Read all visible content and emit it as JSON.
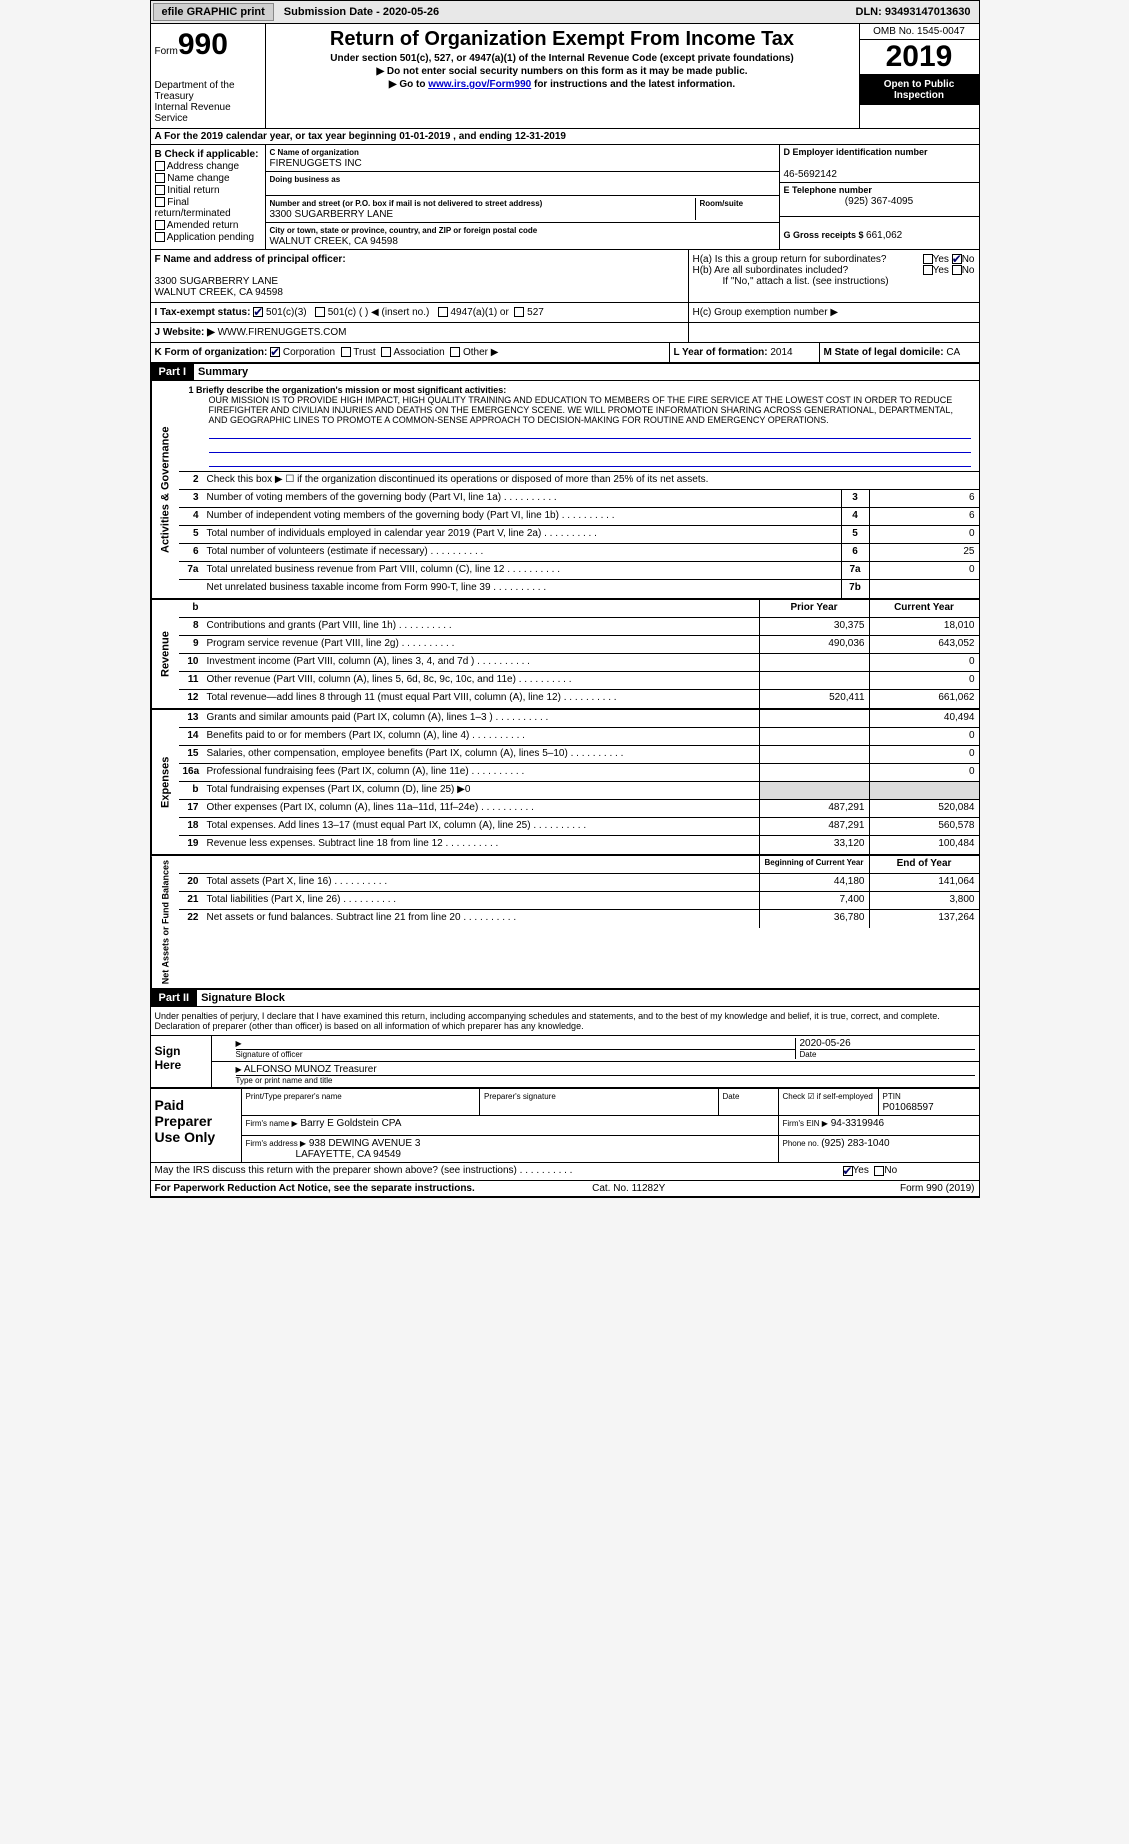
{
  "topbar": {
    "efile": "efile GRAPHIC print",
    "subdate_lbl": "Submission Date - ",
    "subdate": "2020-05-26",
    "dln_lbl": "DLN: ",
    "dln": "93493147013630"
  },
  "header": {
    "form": "Form",
    "formnum": "990",
    "dept": "Department of the Treasury\nInternal Revenue Service",
    "title": "Return of Organization Exempt From Income Tax",
    "sub1": "Under section 501(c), 527, or 4947(a)(1) of the Internal Revenue Code (except private foundations)",
    "sub2": "▶ Do not enter social security numbers on this form as it may be made public.",
    "sub3_pre": "▶ Go to ",
    "sub3_link": "www.irs.gov/Form990",
    "sub3_post": " for instructions and the latest information.",
    "omb": "OMB No. 1545-0047",
    "year": "2019",
    "open": "Open to Public Inspection"
  },
  "rowA": "A  For the 2019 calendar year, or tax year beginning 01-01-2019    , and ending 12-31-2019",
  "colB": {
    "hdr": "B Check if applicable:",
    "items": [
      "Address change",
      "Name change",
      "Initial return",
      "Final return/terminated",
      "Amended return",
      "Application pending"
    ]
  },
  "colC": {
    "name_lbl": "C Name of organization",
    "name": "FIRENUGGETS INC",
    "dba_lbl": "Doing business as",
    "dba": "",
    "addr_lbl": "Number and street (or P.O. box if mail is not delivered to street address)",
    "addr": "3300 SUGARBERRY LANE",
    "room_lbl": "Room/suite",
    "room": "",
    "city_lbl": "City or town, state or province, country, and ZIP or foreign postal code",
    "city": "WALNUT CREEK, CA  94598"
  },
  "colD": {
    "ein_lbl": "D Employer identification number",
    "ein": "46-5692142",
    "tel_lbl": "E Telephone number",
    "tel": "(925) 367-4095",
    "gross_lbl": "G Gross receipts $ ",
    "gross": "661,062"
  },
  "rowF": {
    "lbl": "F Name and address of principal officer:",
    "addr1": "3300 SUGARBERRY LANE",
    "addr2": "WALNUT CREEK, CA  94598"
  },
  "rowH": {
    "a": "H(a)  Is this a group return for subordinates?",
    "b": "H(b)  Are all subordinates included?",
    "note": "If \"No,\" attach a list. (see instructions)",
    "c": "H(c)  Group exemption number ▶",
    "yes": "Yes",
    "no": "No"
  },
  "rowI": {
    "lbl": "I  Tax-exempt status:",
    "o1": "501(c)(3)",
    "o2": "501(c) (  ) ◀ (insert no.)",
    "o3": "4947(a)(1) or",
    "o4": "527"
  },
  "rowJ": {
    "lbl": "J  Website: ▶",
    "val": "WWW.FIRENUGGETS.COM"
  },
  "rowK": {
    "lbl": "K Form of organization:",
    "o1": "Corporation",
    "o2": "Trust",
    "o3": "Association",
    "o4": "Other ▶"
  },
  "rowL": {
    "lbl": "L Year of formation: ",
    "val": "2014"
  },
  "rowM": {
    "lbl": "M State of legal domicile: ",
    "val": "CA"
  },
  "part1": {
    "hdr": "Part I",
    "title": "Summary"
  },
  "tabs": {
    "t1": "Activities & Governance",
    "t2": "Revenue",
    "t3": "Expenses",
    "t4": "Net Assets or Fund Balances"
  },
  "line1": {
    "lbl": "1  Briefly describe the organization's mission or most significant activities:",
    "txt": "OUR MISSION IS TO PROVIDE HIGH IMPACT, HIGH QUALITY TRAINING AND EDUCATION TO MEMBERS OF THE FIRE SERVICE AT THE LOWEST COST IN ORDER TO REDUCE FIREFIGHTER AND CIVILIAN INJURIES AND DEATHS ON THE EMERGENCY SCENE. WE WILL PROMOTE INFORMATION SHARING ACROSS GENERATIONAL, DEPARTMENTAL, AND GEOGRAPHIC LINES TO PROMOTE A COMMON-SENSE APPROACH TO DECISION-MAKING FOR ROUTINE AND EMERGENCY OPERATIONS."
  },
  "line2": "Check this box ▶ ☐  if the organization discontinued its operations or disposed of more than 25% of its net assets.",
  "gov": [
    {
      "n": "3",
      "d": "Number of voting members of the governing body (Part VI, line 1a)",
      "b": "3",
      "v": "6"
    },
    {
      "n": "4",
      "d": "Number of independent voting members of the governing body (Part VI, line 1b)",
      "b": "4",
      "v": "6"
    },
    {
      "n": "5",
      "d": "Total number of individuals employed in calendar year 2019 (Part V, line 2a)",
      "b": "5",
      "v": "0"
    },
    {
      "n": "6",
      "d": "Total number of volunteers (estimate if necessary)",
      "b": "6",
      "v": "25"
    },
    {
      "n": "7a",
      "d": "Total unrelated business revenue from Part VIII, column (C), line 12",
      "b": "7a",
      "v": "0"
    },
    {
      "n": "",
      "d": "Net unrelated business taxable income from Form 990-T, line 39",
      "b": "7b",
      "v": ""
    }
  ],
  "yrhdr": {
    "b": "b",
    "p": "Prior Year",
    "c": "Current Year"
  },
  "rev": [
    {
      "n": "8",
      "d": "Contributions and grants (Part VIII, line 1h)",
      "p": "30,375",
      "c": "18,010"
    },
    {
      "n": "9",
      "d": "Program service revenue (Part VIII, line 2g)",
      "p": "490,036",
      "c": "643,052"
    },
    {
      "n": "10",
      "d": "Investment income (Part VIII, column (A), lines 3, 4, and 7d )",
      "p": "",
      "c": "0"
    },
    {
      "n": "11",
      "d": "Other revenue (Part VIII, column (A), lines 5, 6d, 8c, 9c, 10c, and 11e)",
      "p": "",
      "c": "0"
    },
    {
      "n": "12",
      "d": "Total revenue—add lines 8 through 11 (must equal Part VIII, column (A), line 12)",
      "p": "520,411",
      "c": "661,062"
    }
  ],
  "exp": [
    {
      "n": "13",
      "d": "Grants and similar amounts paid (Part IX, column (A), lines 1–3 )",
      "p": "",
      "c": "40,494"
    },
    {
      "n": "14",
      "d": "Benefits paid to or for members (Part IX, column (A), line 4)",
      "p": "",
      "c": "0"
    },
    {
      "n": "15",
      "d": "Salaries, other compensation, employee benefits (Part IX, column (A), lines 5–10)",
      "p": "",
      "c": "0"
    },
    {
      "n": "16a",
      "d": "Professional fundraising fees (Part IX, column (A), line 11e)",
      "p": "",
      "c": "0"
    },
    {
      "n": "b",
      "d": "Total fundraising expenses (Part IX, column (D), line 25) ▶0",
      "p": "",
      "c": "",
      "shade": true
    },
    {
      "n": "17",
      "d": "Other expenses (Part IX, column (A), lines 11a–11d, 11f–24e)",
      "p": "487,291",
      "c": "520,084"
    },
    {
      "n": "18",
      "d": "Total expenses. Add lines 13–17 (must equal Part IX, column (A), line 25)",
      "p": "487,291",
      "c": "560,578"
    },
    {
      "n": "19",
      "d": "Revenue less expenses. Subtract line 18 from line 12",
      "p": "33,120",
      "c": "100,484"
    }
  ],
  "nethdr": {
    "p": "Beginning of Current Year",
    "c": "End of Year"
  },
  "net": [
    {
      "n": "20",
      "d": "Total assets (Part X, line 16)",
      "p": "44,180",
      "c": "141,064"
    },
    {
      "n": "21",
      "d": "Total liabilities (Part X, line 26)",
      "p": "7,400",
      "c": "3,800"
    },
    {
      "n": "22",
      "d": "Net assets or fund balances. Subtract line 21 from line 20",
      "p": "36,780",
      "c": "137,264"
    }
  ],
  "part2": {
    "hdr": "Part II",
    "title": "Signature Block"
  },
  "penalty": "Under penalties of perjury, I declare that I have examined this return, including accompanying schedules and statements, and to the best of my knowledge and belief, it is true, correct, and complete. Declaration of preparer (other than officer) is based on all information of which preparer has any knowledge.",
  "sign": {
    "lbl": "Sign Here",
    "sig_lbl": "Signature of officer",
    "date": "2020-05-26",
    "date_lbl": "Date",
    "name": "ALFONSO MUNOZ  Treasurer",
    "name_lbl": "Type or print name and title"
  },
  "paid": {
    "lbl": "Paid Preparer Use Only",
    "r1": {
      "c1": "Print/Type preparer's name",
      "c2": "Preparer's signature",
      "c3": "Date",
      "c4": "Check ☑ if self-employed",
      "c5": "PTIN",
      "c5v": "P01068597"
    },
    "r2": {
      "c1": "Firm's name    ▶",
      "c1v": "Barry E Goldstein CPA",
      "c2": "Firm's EIN ▶",
      "c2v": "94-3319946"
    },
    "r3": {
      "c1": "Firm's address ▶",
      "c1v": "938 DEWING AVENUE 3",
      "c1v2": "LAFAYETTE, CA  94549",
      "c2": "Phone no. ",
      "c2v": "(925) 283-1040"
    }
  },
  "discuss": "May the IRS discuss this return with the preparer shown above? (see instructions)",
  "foot": {
    "l": "For Paperwork Reduction Act Notice, see the separate instructions.",
    "m": "Cat. No. 11282Y",
    "r": "Form 990 (2019)"
  }
}
